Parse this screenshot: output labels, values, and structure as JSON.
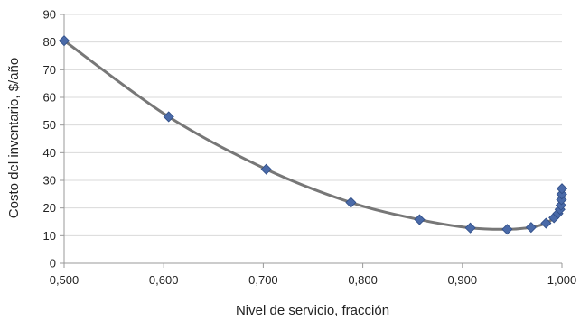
{
  "chart_data": {
    "type": "scatter",
    "title": "",
    "xlabel": "Nivel de servicio, fracción",
    "ylabel": "Costo del inventario, $/año",
    "xlim": [
      0.5,
      1.0
    ],
    "ylim": [
      0,
      90
    ],
    "x_ticks": [
      0.5,
      0.6,
      0.7,
      0.8,
      0.9,
      1.0
    ],
    "x_tick_labels": [
      "0,500",
      "0,600",
      "0,700",
      "0,800",
      "0,900",
      "1,000"
    ],
    "y_ticks": [
      0,
      10,
      20,
      30,
      40,
      50,
      60,
      70,
      80,
      90
    ],
    "y_tick_labels": [
      "0",
      "10",
      "20",
      "30",
      "40",
      "50",
      "60",
      "70",
      "80",
      "90"
    ],
    "grid": "horizontal",
    "legend": "none",
    "line_color": "#777777",
    "marker_color": "#4a6aa8",
    "marker_shape": "diamond",
    "series": [
      {
        "x": [
          0.5,
          0.605,
          0.703,
          0.788,
          0.857,
          0.908,
          0.945,
          0.969,
          0.984,
          0.992,
          0.996,
          0.998,
          0.999,
          0.9995,
          0.9998,
          1.0
        ],
        "y": [
          80.5,
          53,
          34,
          22,
          15.8,
          12.8,
          12.3,
          13.0,
          14.5,
          16.5,
          18.0,
          19.5,
          21.0,
          23.0,
          25.0,
          27.0
        ]
      }
    ]
  }
}
